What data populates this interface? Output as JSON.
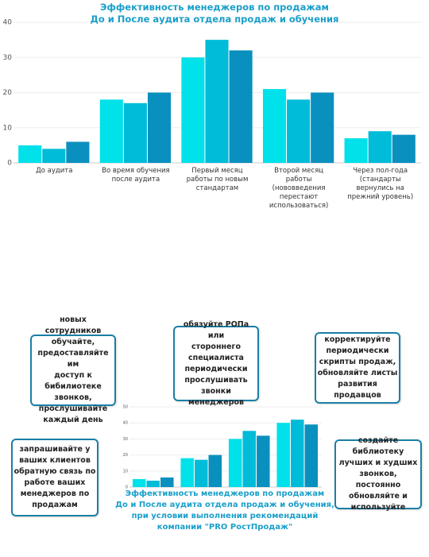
{
  "chart_data": [
    {
      "type": "bar",
      "title": "Эффективность менеджеров по продажам\nДо и После аудита отдела продаж и обучения",
      "categories": [
        "До аудита",
        "Во время обучения\nпосле аудита",
        "Первый месяц\nработы по новым\nстандартам",
        "Второй месяц\nработы\n(нововведения\nперестают\nиспользоваться)",
        "Через пол-года\n(стандарты\nвернулись на\nпрежний уровень)"
      ],
      "series": [
        {
          "color": "#00e1ea",
          "values": [
            5,
            18,
            30,
            21,
            7
          ]
        },
        {
          "color": "#00bcd8",
          "values": [
            4,
            17,
            35,
            18,
            9
          ]
        },
        {
          "color": "#0a90bf",
          "values": [
            6,
            20,
            32,
            20,
            8
          ]
        }
      ],
      "ylim": [
        0,
        40
      ],
      "yticks": [
        0,
        10,
        20,
        30,
        40
      ],
      "grid": true
    },
    {
      "type": "bar",
      "title": "Эффективность менеджеров по продажам\nДо и После аудита отдела продаж и обучения,\nпри условии выполнения рекомендаций\nкомпании \"PRO РостПродаж\"",
      "categories": [
        null,
        null,
        null,
        null
      ],
      "series": [
        {
          "color": "#00e1ea",
          "values": [
            5,
            18,
            30,
            40
          ]
        },
        {
          "color": "#00bcd8",
          "values": [
            4,
            17,
            35,
            42
          ]
        },
        {
          "color": "#0a90bf",
          "values": [
            6,
            20,
            32,
            39
          ]
        }
      ],
      "ylim": [
        0,
        50
      ],
      "yticks": [
        0,
        10,
        20,
        30,
        40,
        50
      ],
      "grid": true
    }
  ],
  "callouts": [
    "новых сотрудников\nобучайте,\nпредоставляйте им\nдоступ к бибилиотеке\nзвонков,\nпрослушивайте\nкаждый день",
    "обязуйте РОПа или\nстороннего\nспециалиста\nпериодически\nпрослушивать\nзвонки менеджеров",
    "корректируйте\nпериодически\nскрипты продаж,\nобновляйте листы\nразвития\nпродавцов",
    "запрашивайте у\nваших клиентов\nобратную связь по\nработе ваших\nменеджеров по\nпродажам",
    "создайте\nбиблиотеку\nлучших и худших\nзвонков, постоянно\nобновляйте и\nиспользуйте"
  ]
}
